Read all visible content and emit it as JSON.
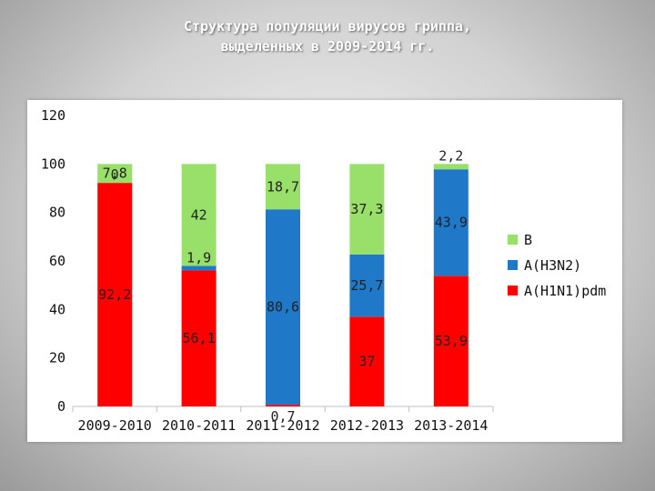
{
  "slide": {
    "title_line1": "Структура популяции вирусов гриппа,",
    "title_line2": "выделенных в 2009-2014 гг."
  },
  "chart_data": {
    "type": "bar",
    "stacked": true,
    "categories": [
      "2009-2010",
      "2010-2011",
      "2011-2012",
      "2012-2013",
      "2013-2014"
    ],
    "series": [
      {
        "name": "A(H1N1)pdm",
        "color": "#ff0000",
        "values": [
          92.2,
          56.1,
          0.7,
          37,
          53.9
        ],
        "labels": [
          "92,2",
          "56,1",
          "0,7",
          "37",
          "53,9"
        ]
      },
      {
        "name": "A(H3N2)",
        "color": "#1f78c8",
        "values": [
          0,
          1.9,
          80.6,
          25.7,
          43.9
        ],
        "labels": [
          "0",
          "1,9",
          "80,6",
          "25,7",
          "43,9"
        ]
      },
      {
        "name": "B",
        "color": "#99e06a",
        "values": [
          7.8,
          42,
          18.7,
          37.3,
          2.2
        ],
        "labels": [
          "7,8",
          "42",
          "18,7",
          "37,3",
          "2,2"
        ]
      }
    ],
    "ylim": [
      0,
      120
    ],
    "yticks": [
      0,
      20,
      40,
      60,
      80,
      100,
      120
    ],
    "grid": false,
    "legend_position": "right"
  }
}
